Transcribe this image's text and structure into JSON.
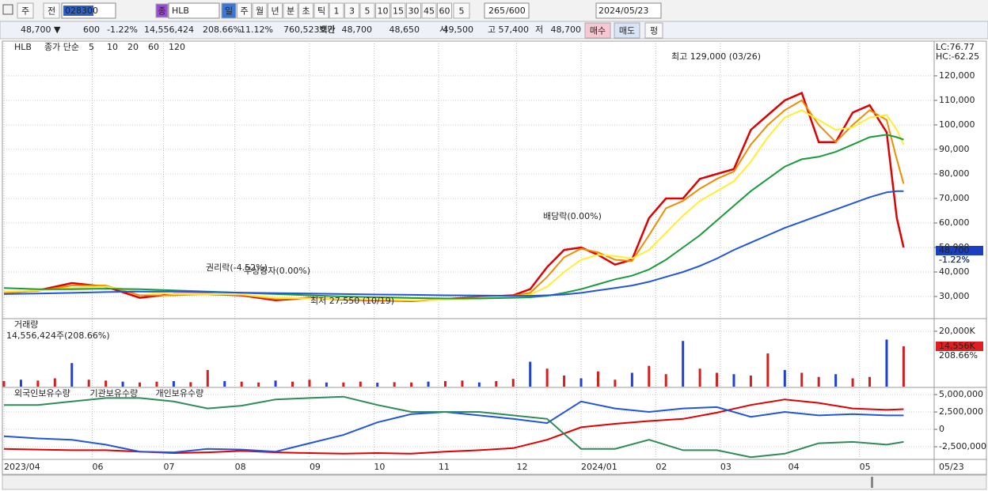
{
  "toolbar": {
    "market": "주",
    "prev": "전",
    "code": "028300",
    "badge": "종",
    "name": "HLB",
    "periods": [
      "일",
      "주",
      "월",
      "년",
      "분",
      "초",
      "틱"
    ],
    "intervals": [
      "1",
      "3",
      "5",
      "10",
      "15",
      "30",
      "45",
      "60"
    ],
    "count": "5",
    "range": "265",
    "max": "/600",
    "date": "2024/05/23"
  },
  "info_bar": {
    "price": "48,700 ▼",
    "change": "600",
    "change_pct": "-1.22%",
    "volume": "14,556,424",
    "volume_ratio": "208.66%",
    "turnover": "11.12%",
    "amount": "760,523백만",
    "ask_label": "호가",
    "ask": "48,700",
    "bid": "48,650",
    "open_label": "시",
    "open": "49,500",
    "high_label": "고",
    "high": "57,400",
    "low_label": "저",
    "low": "48,700",
    "buy": "매수",
    "sell": "매도",
    "flat": "펑"
  },
  "chart_data": [
    {
      "type": "line",
      "title": "HLB",
      "subtitle": "종가 단순",
      "lc": "LC:76.77",
      "hc": "HC:-62.25",
      "annotations": [
        "최고 129,000 (03/26)",
        "배당락(0.00%)",
        "권리락(-4.52%)",
        "무상증자(0.00%)",
        "최저 27,550 (10/19)"
      ],
      "last_value_label": "48,700",
      "last_change_label": "-1.22%",
      "xlim": [
        0,
        274
      ],
      "xticks": [
        {
          "value": 0,
          "label": "2023/04"
        },
        {
          "value": 26,
          "label": "06"
        },
        {
          "value": 47,
          "label": "07"
        },
        {
          "value": 68,
          "label": "08"
        },
        {
          "value": 90,
          "label": "09"
        },
        {
          "value": 109,
          "label": "10"
        },
        {
          "value": 128,
          "label": "11"
        },
        {
          "value": 151,
          "label": "12"
        },
        {
          "value": 170,
          "label": "2024/01"
        },
        {
          "value": 192,
          "label": "02"
        },
        {
          "value": 211,
          "label": "03"
        },
        {
          "value": 231,
          "label": "04"
        },
        {
          "value": 252,
          "label": "05"
        }
      ],
      "date_label": "05/23",
      "ylim": [
        21300,
        133200
      ],
      "yticks": [
        {
          "value": 30000,
          "label": "30,000"
        },
        {
          "value": 40000,
          "label": "40,000"
        },
        {
          "value": 50000,
          "label": "50,000"
        },
        {
          "value": 60000,
          "label": "60,000"
        },
        {
          "value": 70000,
          "label": "70,000"
        },
        {
          "value": 80000,
          "label": "80,000"
        },
        {
          "value": 90000,
          "label": "90,000"
        },
        {
          "value": 100000,
          "label": "100,000"
        },
        {
          "value": 110000,
          "label": "110,000"
        },
        {
          "value": 120000,
          "label": "120,000"
        }
      ],
      "x": [
        0,
        10,
        20,
        30,
        40,
        50,
        60,
        70,
        80,
        90,
        100,
        110,
        120,
        130,
        140,
        150,
        155,
        160,
        165,
        170,
        175,
        180,
        185,
        190,
        195,
        200,
        205,
        210,
        215,
        220,
        225,
        230,
        235,
        240,
        245,
        250,
        255,
        260,
        263,
        265
      ],
      "series": [
        {
          "name": "5",
          "color": "#e00000",
          "values": [
            31500,
            32500,
            35500,
            34000,
            29500,
            31000,
            31000,
            30500,
            28500,
            29500,
            28800,
            28500,
            28200,
            29000,
            29800,
            30500,
            33000,
            42000,
            49000,
            50000,
            47000,
            43000,
            45000,
            62000,
            70000,
            70000,
            78000,
            80000,
            82000,
            98000,
            104000,
            110000,
            113000,
            93000,
            93000,
            105000,
            108000,
            97000,
            62000,
            50000
          ]
        },
        {
          "name": "10",
          "color": "#f08c00",
          "values": [
            31500,
            32300,
            34500,
            34500,
            30500,
            30500,
            31000,
            30700,
            29000,
            29300,
            29000,
            28600,
            28300,
            28800,
            29600,
            30300,
            31500,
            38000,
            46000,
            49500,
            48000,
            45000,
            44500,
            55000,
            66000,
            69000,
            74000,
            78000,
            81000,
            92000,
            100000,
            106000,
            110000,
            100000,
            93000,
            100000,
            106000,
            102000,
            86000,
            76000
          ]
        },
        {
          "name": "20",
          "color": "#ffee33",
          "values": [
            32000,
            32500,
            33500,
            34000,
            32000,
            31000,
            31000,
            30800,
            29500,
            29200,
            29000,
            28800,
            28500,
            28700,
            29300,
            30000,
            30800,
            34000,
            40000,
            45000,
            47000,
            46500,
            45500,
            49000,
            56000,
            63000,
            69000,
            73000,
            77000,
            85000,
            95000,
            103000,
            106000,
            102000,
            98000,
            99000,
            103000,
            104000,
            98000,
            92000
          ]
        },
        {
          "name": "60",
          "color": "#1a9a3a",
          "values": [
            33500,
            33000,
            33000,
            33200,
            33000,
            32500,
            32000,
            31500,
            31000,
            30500,
            30000,
            29700,
            29400,
            29200,
            29200,
            29500,
            29700,
            30300,
            31500,
            33000,
            35000,
            37000,
            38500,
            41000,
            45000,
            50000,
            55000,
            61000,
            67000,
            73000,
            78000,
            83000,
            86000,
            87000,
            89000,
            92000,
            95000,
            96000,
            95000,
            94000
          ]
        },
        {
          "name": "120",
          "color": "#2255dd",
          "values": [
            31000,
            31200,
            31500,
            31800,
            32000,
            32000,
            31800,
            31600,
            31400,
            31200,
            31000,
            30800,
            30700,
            30500,
            30400,
            30300,
            30300,
            30500,
            30800,
            31500,
            32500,
            33500,
            34500,
            36000,
            38000,
            40000,
            42500,
            45500,
            49000,
            52000,
            55000,
            58000,
            60500,
            63000,
            65500,
            68000,
            70500,
            72500,
            73000,
            73000
          ]
        }
      ]
    },
    {
      "type": "bar",
      "title": "거래량",
      "subtitle": "14,556,424주(208.66%)",
      "color": "#d02020",
      "alt_color": "#2040d0",
      "last_value_label": "14,556K",
      "last_change_label": "208.66%",
      "ylim": [
        0,
        23700
      ],
      "yticks": [
        {
          "value": 20000,
          "label": "20,000K"
        }
      ],
      "x": [
        0,
        5,
        10,
        15,
        20,
        25,
        30,
        35,
        40,
        45,
        50,
        55,
        60,
        65,
        70,
        75,
        80,
        85,
        90,
        95,
        100,
        105,
        110,
        115,
        120,
        125,
        130,
        135,
        140,
        145,
        150,
        155,
        160,
        165,
        170,
        175,
        180,
        185,
        190,
        195,
        200,
        205,
        210,
        215,
        220,
        225,
        230,
        235,
        240,
        245,
        250,
        255,
        260,
        265
      ],
      "values": [
        2000,
        2500,
        2200,
        3000,
        8500,
        2500,
        2200,
        1800,
        1500,
        1800,
        2000,
        1600,
        6000,
        2000,
        1800,
        1500,
        2200,
        1800,
        2500,
        1500,
        1500,
        1800,
        1400,
        1600,
        1500,
        1800,
        2000,
        2200,
        1500,
        2000,
        2800,
        9000,
        6500,
        4000,
        3000,
        5500,
        2500,
        5000,
        7500,
        4500,
        16500,
        6500,
        5000,
        4500,
        4000,
        12000,
        6000,
        5000,
        3500,
        4500,
        3000,
        3500,
        17000,
        14556
      ]
    },
    {
      "type": "line",
      "ylim": [
        -4200000,
        5800000
      ],
      "yticks": [
        {
          "value": 5000000,
          "label": "5,000,000"
        },
        {
          "value": 2500000,
          "label": "2,500,000"
        },
        0,
        {
          "value": -2500000,
          "label": "-2,500,000"
        }
      ],
      "x": [
        0,
        10,
        20,
        30,
        40,
        50,
        60,
        70,
        80,
        90,
        100,
        110,
        120,
        130,
        140,
        150,
        160,
        170,
        180,
        190,
        200,
        210,
        220,
        230,
        240,
        250,
        260,
        265
      ],
      "series": [
        {
          "name": "외국인보유수량",
          "color": "#e00000",
          "values": [
            -2800000,
            -2900000,
            -3000000,
            -3000000,
            -3200000,
            -3400000,
            -3300000,
            -3100000,
            -3300000,
            -3400000,
            -3500000,
            -3400000,
            -3500000,
            -3200000,
            -3000000,
            -2700000,
            -1500000,
            300000,
            800000,
            1200000,
            1500000,
            2400000,
            3500000,
            4300000,
            3800000,
            3000000,
            2800000,
            2900000
          ]
        },
        {
          "name": "기관보유수량",
          "color": "#2255dd",
          "values": [
            -1000000,
            -1300000,
            -1500000,
            -2200000,
            -3200000,
            -3300000,
            -2800000,
            -2900000,
            -3200000,
            -2000000,
            -800000,
            1000000,
            2200000,
            2500000,
            2000000,
            1500000,
            900000,
            4000000,
            3000000,
            2500000,
            3000000,
            3200000,
            1800000,
            2500000,
            2000000,
            2200000,
            2000000,
            2000000
          ]
        },
        {
          "name": "개인보유수량",
          "color": "#2e8b57",
          "values": [
            3500000,
            3500000,
            4000000,
            4500000,
            4500000,
            4000000,
            3000000,
            3400000,
            4300000,
            4500000,
            4700000,
            3500000,
            2500000,
            2500000,
            2500000,
            2000000,
            1500000,
            -2800000,
            -2800000,
            -1500000,
            -3000000,
            -3000000,
            -4000000,
            -3500000,
            -2000000,
            -1800000,
            -2200000,
            -1800000
          ]
        }
      ]
    }
  ]
}
